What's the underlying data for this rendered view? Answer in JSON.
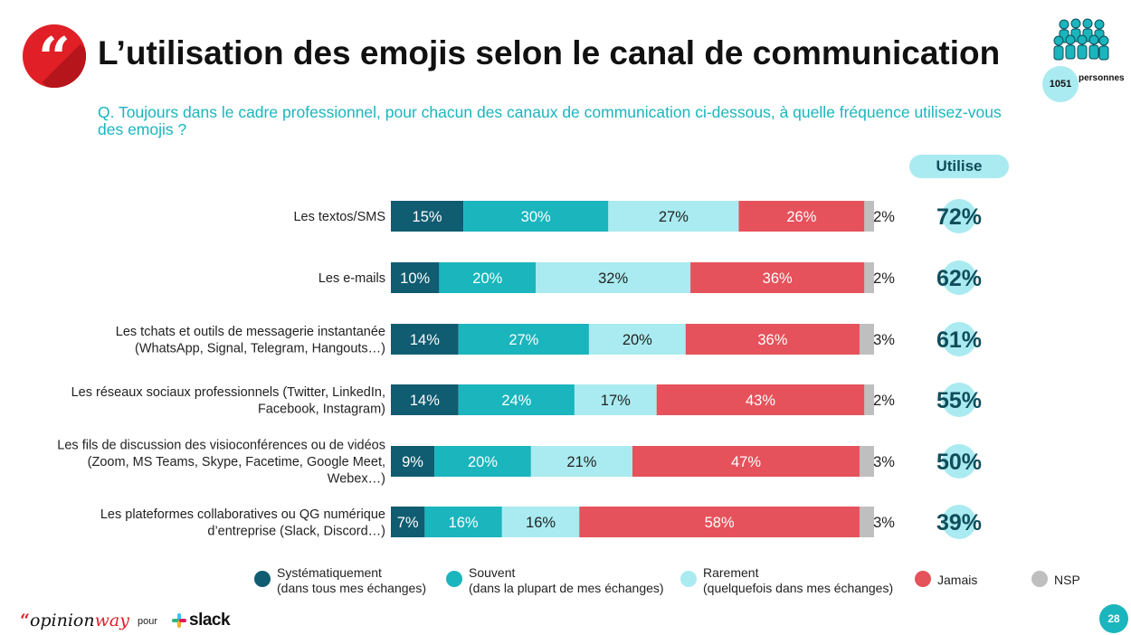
{
  "header": {
    "title": "L’utilisation des emojis selon le canal de communication",
    "quote_icon": "quote-mark-icon",
    "sample": {
      "count": "1051",
      "unit": "personnes",
      "icon": "people-group-icon"
    }
  },
  "question": "Q. Toujours dans le cadre professionnel, pour chacun des canaux de communication ci-dessous, à quelle fréquence utilisez-vous des emojis ?",
  "utilise_header": "Utilise",
  "colors": {
    "systematiquement": "#105c71",
    "souvent": "#1ab5bd",
    "rarement": "#a9ebf0",
    "jamais": "#e5525b",
    "nsp": "#bfbfbf",
    "accent": "#1ab5bd"
  },
  "chart_data": {
    "type": "bar",
    "orientation": "horizontal",
    "stacked": true,
    "xlim": [
      0,
      100
    ],
    "unit": "%",
    "categories": [
      [
        "Les textos/SMS"
      ],
      [
        "Les e-mails"
      ],
      [
        "Les tchats et outils de messagerie instantanée",
        "(WhatsApp, Signal, Telegram, Hangouts…)"
      ],
      [
        "Les réseaux sociaux professionnels (Twitter, LinkedIn,",
        "Facebook, Instagram)"
      ],
      [
        "Les fils de discussion des visioconférences ou de vidéos",
        "(Zoom, MS Teams, Skype, Facetime, Google Meet,",
        "Webex…)"
      ],
      [
        "Les plateformes collaboratives ou QG numérique",
        "d’entreprise (Slack, Discord…)"
      ]
    ],
    "series": [
      {
        "name": "Systématiquement (dans tous mes échanges)",
        "legend": [
          "Systématiquement",
          "(dans tous mes échanges)"
        ],
        "key": "systematiquement",
        "label_color": "#ffffff",
        "values": [
          15,
          10,
          14,
          14,
          9,
          7
        ]
      },
      {
        "name": "Souvent (dans la plupart de mes échanges)",
        "legend": [
          "Souvent",
          "(dans la plupart de mes échanges)"
        ],
        "key": "souvent",
        "label_color": "#ffffff",
        "values": [
          30,
          20,
          27,
          24,
          20,
          16
        ]
      },
      {
        "name": "Rarement (quelquefois dans mes échanges)",
        "legend": [
          "Rarement",
          "(quelquefois dans mes échanges)"
        ],
        "key": "rarement",
        "label_color": "#222222",
        "values": [
          27,
          32,
          20,
          17,
          21,
          16
        ]
      },
      {
        "name": "Jamais",
        "legend": [
          "Jamais"
        ],
        "key": "jamais",
        "label_color": "#ffffff",
        "values": [
          26,
          36,
          36,
          43,
          47,
          58
        ]
      },
      {
        "name": "NSP",
        "legend": [
          "NSP"
        ],
        "key": "nsp",
        "label_color": "#222222",
        "values": [
          2,
          2,
          3,
          2,
          3,
          3
        ]
      }
    ],
    "utilise": [
      72,
      62,
      61,
      55,
      50,
      39
    ]
  },
  "footer": {
    "brand_prefix": "“",
    "brand_main": "opinion",
    "brand_suffix": "way",
    "pour": "pour",
    "slack": "slack",
    "page_number": "28"
  }
}
